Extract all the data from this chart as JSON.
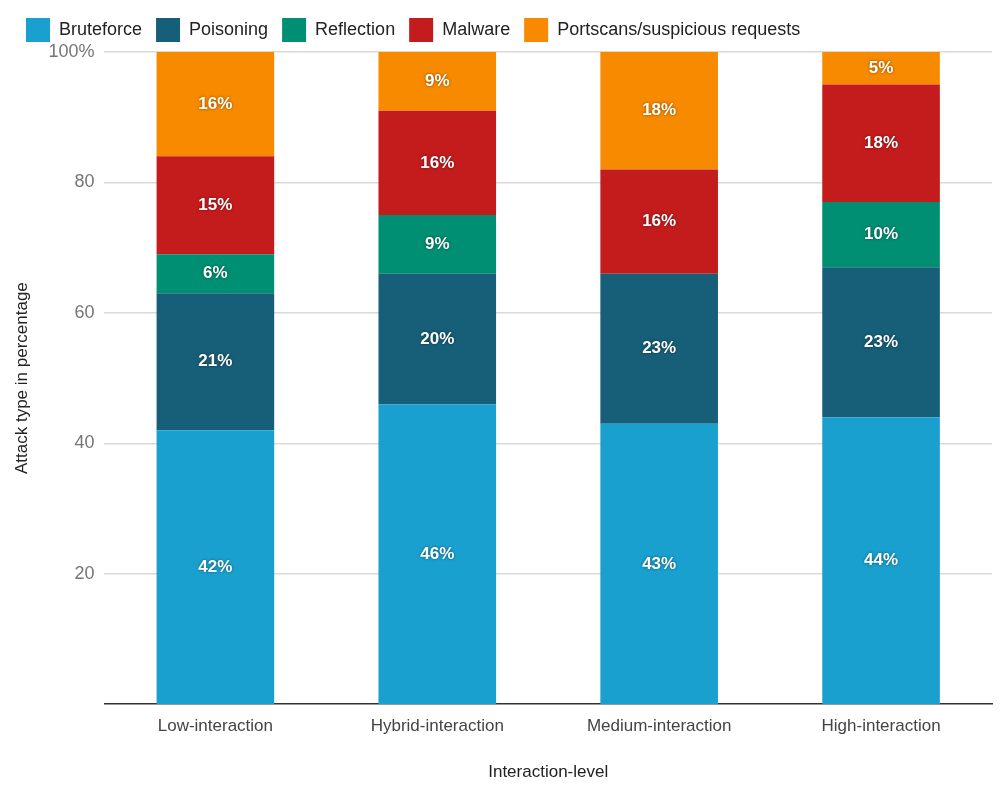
{
  "chart_data": {
    "type": "bar",
    "stacked": true,
    "xlabel": "Interaction-level",
    "ylabel": "Attack type in percentage",
    "categories": [
      "Low-interaction",
      "Hybrid-interaction",
      "Medium-interaction",
      "High-interaction"
    ],
    "series": [
      {
        "name": "Bruteforce",
        "color": "#1aa0cf",
        "values": [
          42,
          46,
          43,
          44
        ],
        "value_labels": [
          "42%",
          "46%",
          "43%",
          "44%"
        ]
      },
      {
        "name": "Poisoning",
        "color": "#175f78",
        "values": [
          21,
          20,
          23,
          23
        ],
        "value_labels": [
          "21%",
          "20%",
          "23%",
          "23%"
        ]
      },
      {
        "name": "Reflection",
        "color": "#008f72",
        "values": [
          6,
          9,
          null,
          10
        ],
        "value_labels": [
          "6%",
          "9%",
          null,
          "10%"
        ]
      },
      {
        "name": "Malware",
        "color": "#c41c1d",
        "values": [
          15,
          16,
          16,
          18
        ],
        "value_labels": [
          "15%",
          "16%",
          "16%",
          "18%"
        ]
      },
      {
        "name": "Portscans/suspicious requests",
        "color": "#f88a00",
        "values": [
          16,
          9,
          18,
          5
        ],
        "value_labels": [
          "16%",
          "9%",
          "18%",
          "5%"
        ]
      }
    ],
    "ylim": [
      0,
      100
    ],
    "yticks": [
      20,
      40,
      60,
      80,
      {
        "value": 100,
        "label": "100%"
      }
    ],
    "grid": "y",
    "legend": "top left"
  }
}
